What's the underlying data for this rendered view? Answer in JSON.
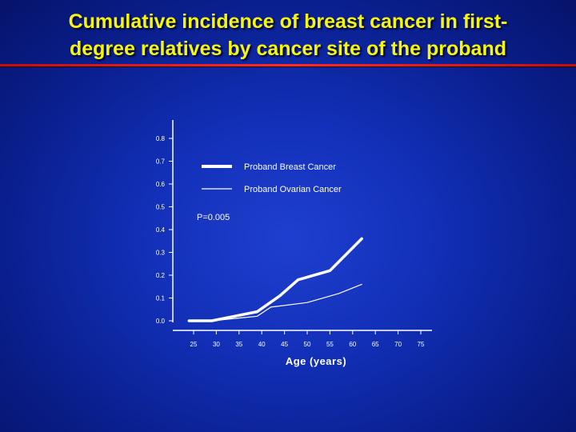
{
  "title": "Cumulative incidence of breast cancer in first-degree relatives by cancer site of the proband",
  "title_line1": "Cumulative incidence of breast cancer in first-",
  "title_line2": "degree relatives by cancer site of the proband",
  "chart_data": {
    "type": "line",
    "title": "Cumulative incidence of breast cancer in first-degree relatives by cancer site of the proband",
    "xlabel": "Age (years)",
    "ylabel": "",
    "x_ticks": [
      25,
      30,
      35,
      40,
      45,
      50,
      55,
      60,
      65,
      70,
      75
    ],
    "y_ticks": [
      "0.0",
      "0.1",
      "0.2",
      "0.3",
      "0.4",
      "0.5",
      "0.6",
      "0.7",
      "0.8"
    ],
    "xlim": [
      20,
      75
    ],
    "ylim": [
      0,
      0.8
    ],
    "grid": false,
    "legend_position": "top-center",
    "annotation": "P=0.005",
    "series": [
      {
        "name": "Proband Breast Cancer",
        "color": "#ffffff",
        "style": "thick",
        "points": [
          [
            24,
            0.0
          ],
          [
            29,
            0.0
          ],
          [
            34,
            0.02
          ],
          [
            39,
            0.04
          ],
          [
            44,
            0.11
          ],
          [
            48,
            0.18
          ],
          [
            55,
            0.22
          ],
          [
            62,
            0.36
          ]
        ]
      },
      {
        "name": "Proband Ovarian Cancer",
        "color": "#ffffff",
        "style": "thin",
        "points": [
          [
            24,
            0.0
          ],
          [
            29,
            0.0
          ],
          [
            34,
            0.01
          ],
          [
            39,
            0.02
          ],
          [
            42,
            0.06
          ],
          [
            50,
            0.08
          ],
          [
            57,
            0.12
          ],
          [
            62,
            0.16
          ]
        ]
      }
    ]
  }
}
